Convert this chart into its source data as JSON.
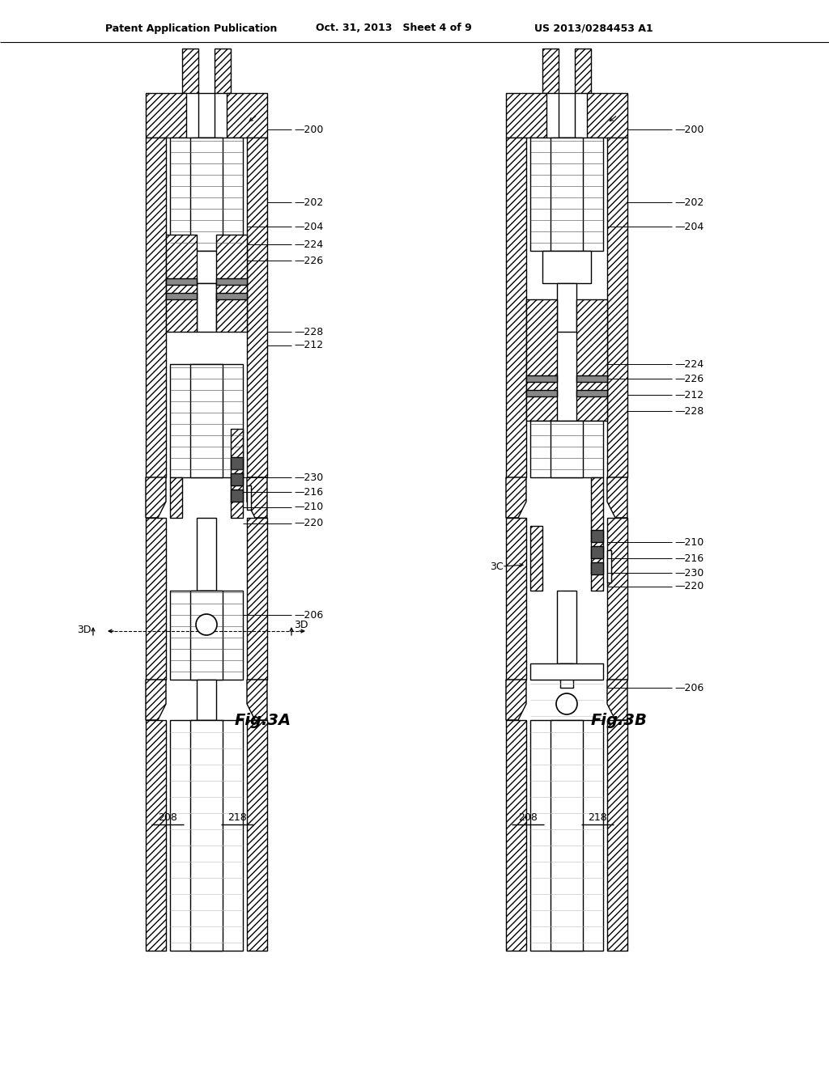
{
  "title_left": "Patent Application Publication",
  "title_center": "Oct. 31, 2013   Sheet 4 of 9",
  "title_right": "US 2013/0284453 A1",
  "fig_a_label": "Fig.3A",
  "fig_b_label": "Fig.3B",
  "background": "#ffffff",
  "hatch": "////",
  "lw": 1.0
}
